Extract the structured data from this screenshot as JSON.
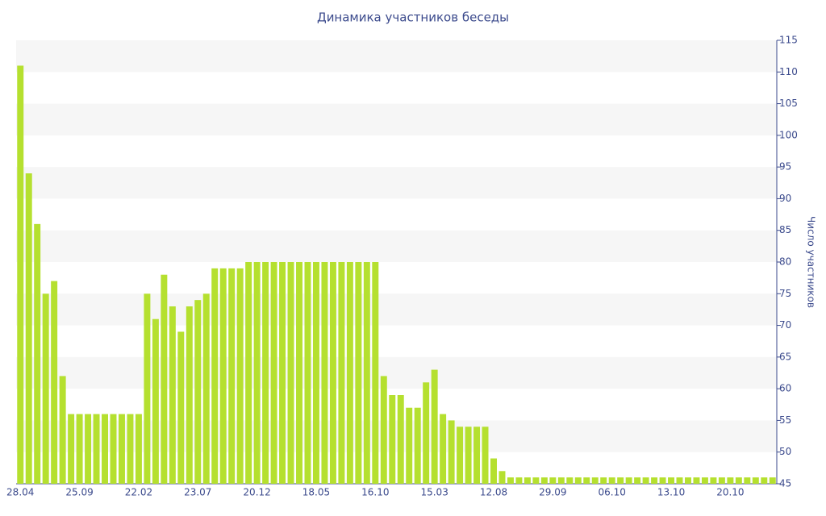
{
  "chart_data": {
    "type": "bar",
    "title": "Динамика участников беседы",
    "y_label": "Число участников",
    "categories": [
      "28.04",
      null,
      null,
      null,
      null,
      null,
      null,
      "25.09",
      null,
      null,
      null,
      null,
      null,
      null,
      "22.02",
      null,
      null,
      null,
      null,
      null,
      null,
      "23.07",
      null,
      null,
      null,
      null,
      null,
      null,
      "20.12",
      null,
      null,
      null,
      null,
      null,
      null,
      "18.05",
      null,
      null,
      null,
      null,
      null,
      null,
      "16.10",
      null,
      null,
      null,
      null,
      null,
      null,
      "15.03",
      null,
      null,
      null,
      null,
      null,
      null,
      "12.08",
      null,
      null,
      null,
      null,
      null,
      null,
      "29.09",
      null,
      null,
      null,
      null,
      null,
      null,
      "06.10",
      null,
      null,
      null,
      null,
      null,
      null,
      "13.10",
      null,
      null,
      null,
      null,
      null,
      null,
      "20.10",
      null,
      null,
      null,
      null,
      null
    ],
    "values": [
      111,
      94,
      86,
      75,
      77,
      62,
      56,
      56,
      56,
      56,
      56,
      56,
      56,
      56,
      56,
      75,
      71,
      78,
      73,
      69,
      73,
      74,
      75,
      79,
      79,
      79,
      79,
      80,
      80,
      80,
      80,
      80,
      80,
      80,
      80,
      80,
      80,
      80,
      80,
      80,
      80,
      80,
      80,
      62,
      59,
      59,
      57,
      57,
      61,
      63,
      56,
      55,
      54,
      54,
      54,
      54,
      49,
      47,
      46,
      46,
      46,
      46,
      46,
      46,
      46,
      46,
      46,
      46,
      46,
      46,
      46,
      46,
      46,
      46,
      46,
      46,
      46,
      46,
      46,
      46,
      46,
      46,
      46,
      46,
      46,
      46,
      46,
      46,
      46,
      46
    ],
    "color": "#b5e02f",
    "ylim": [
      45,
      115
    ],
    "yticks": [
      45,
      50,
      55,
      60,
      65,
      70,
      75,
      80,
      85,
      90,
      95,
      100,
      105,
      110,
      115
    ],
    "y_axis_side": "right",
    "grid": "bands",
    "band_color": "#f6f6f6"
  }
}
